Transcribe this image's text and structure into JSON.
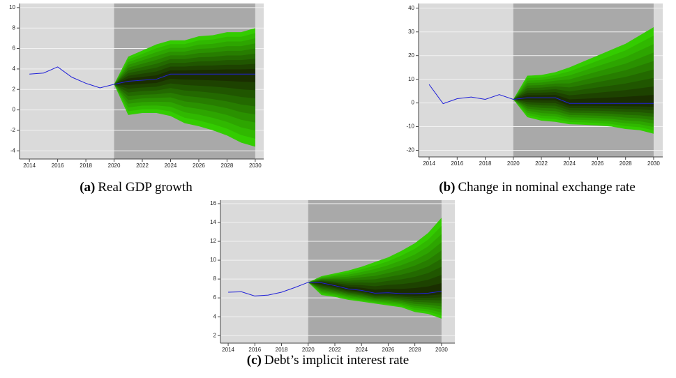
{
  "chart_data": [
    {
      "type": "fan",
      "caption_label": "(a)",
      "caption": "Real GDP growth",
      "x": [
        2014,
        2015,
        2016,
        2017,
        2018,
        2019,
        2020,
        2021,
        2022,
        2023,
        2024,
        2025,
        2026,
        2027,
        2028,
        2029,
        2030
      ],
      "values": [
        3.5,
        3.6,
        4.2,
        3.2,
        2.6,
        2.15,
        2.5,
        2.8,
        2.9,
        3.0,
        3.5,
        3.5,
        3.5,
        3.5,
        3.5,
        3.5,
        3.5
      ],
      "color": "#2020d8",
      "fan": {
        "x": [
          2020,
          2021,
          2022,
          2023,
          2024,
          2025,
          2026,
          2027,
          2028,
          2029,
          2030
        ],
        "upper": [
          2.5,
          5.2,
          5.8,
          6.4,
          6.8,
          6.8,
          7.2,
          7.3,
          7.6,
          7.6,
          8.0
        ],
        "lower": [
          2.5,
          -0.5,
          -0.3,
          -0.3,
          -0.6,
          -1.3,
          -1.6,
          -2.0,
          -2.5,
          -3.2,
          -3.6
        ],
        "colors": [
          "#33cc00",
          "#1a2e00"
        ]
      },
      "background": "#dadada",
      "forecast_background": "#a9a9a9",
      "xlim": [
        2013.3,
        2030.6
      ],
      "xticks": [
        2014,
        2016,
        2018,
        2020,
        2022,
        2024,
        2026,
        2028,
        2030
      ],
      "ylim": [
        -4.8,
        10.4
      ],
      "yticks": [
        -4,
        -2,
        0,
        2,
        4,
        6,
        8,
        10
      ],
      "grid": true
    },
    {
      "type": "fan",
      "caption_label": "(b)",
      "caption": "Change in nominal exchange rate",
      "x": [
        2014,
        2015,
        2016,
        2017,
        2018,
        2019,
        2020,
        2021,
        2022,
        2023,
        2024,
        2025,
        2026,
        2027,
        2028,
        2029,
        2030
      ],
      "values": [
        7.8,
        -0.3,
        1.8,
        2.5,
        1.5,
        3.5,
        1.5,
        2.2,
        2.2,
        2.2,
        -0.2,
        -0.2,
        -0.2,
        -0.2,
        -0.2,
        -0.2,
        -0.2
      ],
      "color": "#2020d8",
      "fan": {
        "x": [
          2020,
          2021,
          2022,
          2023,
          2024,
          2025,
          2026,
          2027,
          2028,
          2029,
          2030
        ],
        "upper": [
          1.5,
          11.5,
          11.8,
          13,
          15,
          17.5,
          20,
          22.5,
          25,
          28.5,
          32
        ],
        "lower": [
          1.5,
          -6,
          -7.5,
          -8,
          -9,
          -9.2,
          -9.5,
          -10,
          -11,
          -11.5,
          -13
        ],
        "colors": [
          "#33cc00",
          "#1a2e00"
        ]
      },
      "background": "#dadada",
      "forecast_background": "#a9a9a9",
      "xlim": [
        2013.25,
        2030.65
      ],
      "xticks": [
        2014,
        2016,
        2018,
        2020,
        2022,
        2024,
        2026,
        2028,
        2030
      ],
      "ylim": [
        -22.8,
        42
      ],
      "yticks": [
        -20,
        -10,
        0,
        10,
        20,
        30,
        40
      ],
      "grid": true
    },
    {
      "type": "fan",
      "caption_label": "(c)",
      "caption": "Debt’s implicit interest rate",
      "x": [
        2014,
        2015,
        2016,
        2017,
        2018,
        2019,
        2020,
        2021,
        2022,
        2023,
        2024,
        2025,
        2026,
        2027,
        2028,
        2029,
        2030
      ],
      "values": [
        6.6,
        6.65,
        6.2,
        6.3,
        6.6,
        7.1,
        7.65,
        7.6,
        7.3,
        6.95,
        6.8,
        6.5,
        6.55,
        6.45,
        6.45,
        6.5,
        6.7
      ],
      "color": "#2020d8",
      "fan": {
        "x": [
          2020,
          2021,
          2022,
          2023,
          2024,
          2025,
          2026,
          2027,
          2028,
          2029,
          2030
        ],
        "upper": [
          7.65,
          8.3,
          8.6,
          8.9,
          9.3,
          9.8,
          10.3,
          11.0,
          11.8,
          12.9,
          14.5
        ],
        "lower": [
          7.65,
          6.3,
          6.1,
          5.8,
          5.6,
          5.4,
          5.2,
          5.0,
          4.5,
          4.3,
          3.8
        ],
        "colors": [
          "#33cc00",
          "#1a2e00"
        ]
      },
      "background": "#dadada",
      "forecast_background": "#a9a9a9",
      "xlim": [
        2013.42,
        2031.0
      ],
      "xticks": [
        2014,
        2016,
        2018,
        2020,
        2022,
        2024,
        2026,
        2028,
        2030
      ],
      "ylim": [
        1.2,
        16.37
      ],
      "yticks": [
        2,
        4,
        6,
        8,
        10,
        12,
        14,
        16
      ],
      "grid": true
    }
  ]
}
